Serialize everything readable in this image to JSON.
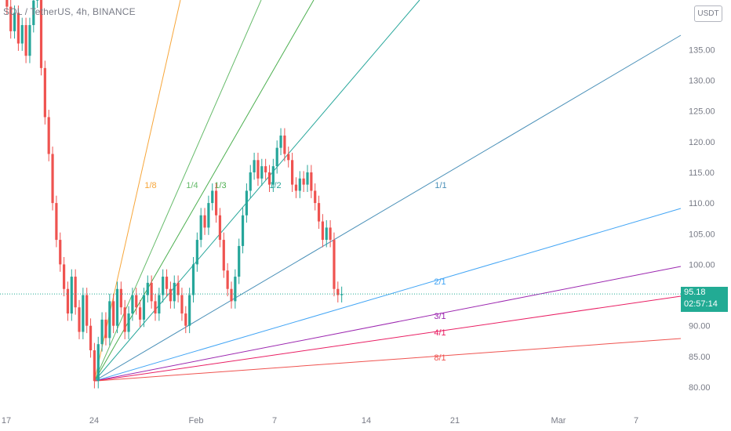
{
  "header": {
    "symbol_title": "SOL / TetherUS, 4h, BINANCE",
    "currency_label": "USDT"
  },
  "price_tag": {
    "price": "95.18",
    "countdown": "02:57:14",
    "color": "#22ab94"
  },
  "chart_data": {
    "type": "candlestick",
    "title": "SOL / TetherUS, 4h, BINANCE",
    "y_ticks": [
      "135.00",
      "130.00",
      "125.00",
      "120.00",
      "115.00",
      "110.00",
      "105.00",
      "100.00",
      "95.00",
      "90.00",
      "85.00",
      "80.00"
    ],
    "x_ticks": [
      "17",
      "24",
      "Feb",
      "7",
      "14",
      "21",
      "Mar",
      "7"
    ],
    "ylim": [
      79,
      144
    ],
    "current_price": 95.18,
    "up_color": "#26a69a",
    "down_color": "#ef5350",
    "price_path": [
      [
        0,
        145
      ],
      [
        1,
        142
      ],
      [
        2,
        138
      ],
      [
        3,
        141
      ],
      [
        4,
        136
      ],
      [
        5,
        139
      ],
      [
        6,
        134
      ],
      [
        7,
        139
      ],
      [
        8,
        143
      ],
      [
        9,
        147
      ],
      [
        10,
        132
      ],
      [
        11,
        124
      ],
      [
        12,
        118
      ],
      [
        13,
        110
      ],
      [
        14,
        104
      ],
      [
        15,
        100
      ],
      [
        16,
        96
      ],
      [
        17,
        92
      ],
      [
        18,
        98
      ],
      [
        19,
        93
      ],
      [
        20,
        89
      ],
      [
        21,
        95
      ],
      [
        22,
        90
      ],
      [
        23,
        86
      ],
      [
        24,
        81
      ],
      [
        25,
        87
      ],
      [
        26,
        91
      ],
      [
        27,
        88
      ],
      [
        28,
        94
      ],
      [
        29,
        90
      ],
      [
        30,
        96
      ],
      [
        31,
        93
      ],
      [
        32,
        89
      ],
      [
        33,
        92
      ],
      [
        34,
        95
      ],
      [
        35,
        93
      ],
      [
        36,
        91
      ],
      [
        37,
        95
      ],
      [
        38,
        97
      ],
      [
        39,
        94
      ],
      [
        40,
        92
      ],
      [
        41,
        95
      ],
      [
        42,
        98
      ],
      [
        43,
        96
      ],
      [
        44,
        94
      ],
      [
        45,
        97
      ],
      [
        46,
        95
      ],
      [
        47,
        92
      ],
      [
        48,
        90
      ],
      [
        49,
        95
      ],
      [
        50,
        100
      ],
      [
        51,
        104
      ],
      [
        52,
        108
      ],
      [
        53,
        106
      ],
      [
        54,
        110
      ],
      [
        55,
        112
      ],
      [
        56,
        108
      ],
      [
        57,
        104
      ],
      [
        58,
        99
      ],
      [
        59,
        96
      ],
      [
        60,
        94
      ],
      [
        61,
        98
      ],
      [
        62,
        103
      ],
      [
        63,
        108
      ],
      [
        64,
        112
      ],
      [
        65,
        115
      ],
      [
        66,
        117
      ],
      [
        67,
        114
      ],
      [
        68,
        116
      ],
      [
        69,
        115
      ],
      [
        70,
        113
      ],
      [
        71,
        116
      ],
      [
        72,
        119
      ],
      [
        73,
        121
      ],
      [
        74,
        118
      ],
      [
        75,
        117
      ],
      [
        76,
        113
      ],
      [
        77,
        112
      ],
      [
        78,
        114
      ],
      [
        79,
        113
      ],
      [
        80,
        115
      ],
      [
        81,
        112
      ],
      [
        82,
        110
      ],
      [
        83,
        107
      ],
      [
        84,
        104
      ],
      [
        85,
        106
      ],
      [
        86,
        104
      ],
      [
        87,
        96
      ],
      [
        88,
        95
      ],
      [
        89,
        95.18
      ]
    ],
    "fan": {
      "anchor_date_index": 24,
      "anchor_price": 81,
      "lines": [
        {
          "label": "1/8",
          "color": "#f7a63a"
        },
        {
          "label": "1/4",
          "color": "#66bb6a"
        },
        {
          "label": "1/3",
          "color": "#4caf50"
        },
        {
          "label": "1/2",
          "color": "#26a69a"
        },
        {
          "label": "1/1",
          "color": "#4a90b8"
        },
        {
          "label": "2/1",
          "color": "#42a5f5"
        },
        {
          "label": "3/1",
          "color": "#9c27b0"
        },
        {
          "label": "4/1",
          "color": "#e91e63"
        },
        {
          "label": "8/1",
          "color": "#ef5350"
        }
      ]
    }
  }
}
